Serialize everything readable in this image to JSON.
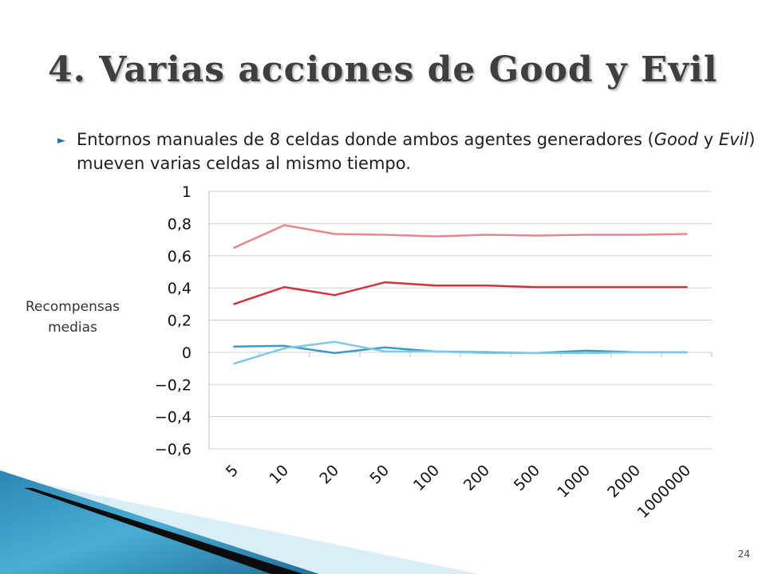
{
  "slide": {
    "title": "4.  Varias acciones de Good y Evil",
    "bullet_before_good": "Entornos manuales de 8 celdas donde ambos agentes generadores (",
    "good": "Good",
    "bullet_between": " y ",
    "evil": "Evil",
    "bullet_after_evil": ") mueven varias celdas al mismo tiempo.",
    "page_number": "24",
    "bullet_icon": "triangle-right-icon"
  },
  "chart_data": {
    "type": "line",
    "ylabel_line1": "Recompensas",
    "ylabel_line2": "medias",
    "categories": [
      "5",
      "10",
      "20",
      "50",
      "100",
      "200",
      "500",
      "1000",
      "2000",
      "1000000"
    ],
    "ylim": [
      -0.6,
      1
    ],
    "yticks": [
      1,
      0.8,
      0.6,
      0.4,
      0.2,
      0,
      -0.2,
      -0.4,
      -0.6
    ],
    "ytick_labels": [
      "1",
      "0,8",
      "0,6",
      "0,4",
      "0,2",
      "0",
      "−0,2",
      "−0,4",
      "−0,6"
    ],
    "grid": true,
    "series": [
      {
        "color": "#e8868e",
        "values": [
          0.65,
          0.79,
          0.735,
          0.73,
          0.72,
          0.73,
          0.725,
          0.73,
          0.73,
          0.735
        ]
      },
      {
        "color": "#d0343f",
        "values": [
          0.3,
          0.405,
          0.355,
          0.435,
          0.415,
          0.415,
          0.405,
          0.405,
          0.405,
          0.405
        ]
      },
      {
        "color": "#3b9bc2",
        "values": [
          0.035,
          0.04,
          -0.005,
          0.03,
          0.005,
          0.0,
          -0.005,
          0.01,
          0.0,
          0.0
        ]
      },
      {
        "color": "#7fcbe6",
        "values": [
          -0.07,
          0.025,
          0.065,
          0.005,
          0.005,
          -0.005,
          -0.005,
          -0.005,
          0.0,
          0.0
        ]
      }
    ]
  }
}
